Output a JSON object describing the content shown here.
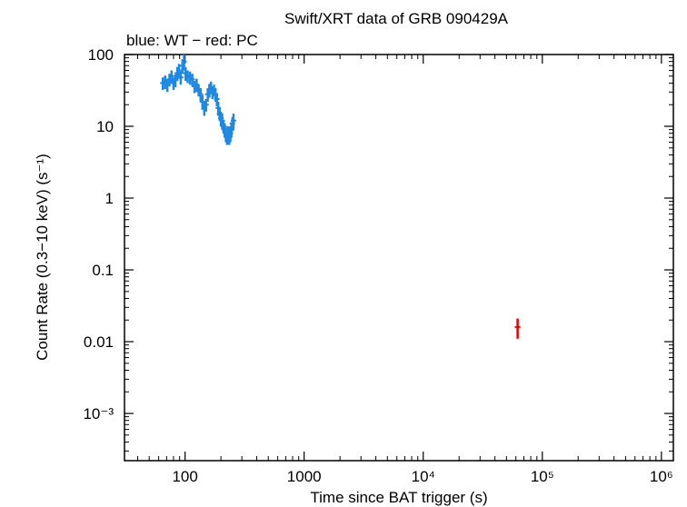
{
  "chart_data": {
    "type": "scatter",
    "title": "Swift/XRT data of GRB 090429A",
    "subtitle": "blue: WT − red: PC",
    "xlabel": "Time since BAT trigger (s)",
    "ylabel": "Count Rate (0.3−10 keV) (s⁻¹)",
    "xlog": true,
    "ylog": true,
    "xlim": [
      31,
      1260000
    ],
    "ylim": [
      0.00022,
      100
    ],
    "xticks": [
      100,
      1000,
      {
        "value": 10000,
        "label": "10⁴"
      },
      {
        "value": 100000,
        "label": "10⁵"
      },
      {
        "value": 1000000,
        "label": "10⁶"
      }
    ],
    "yticks": [
      100,
      10,
      1,
      0.1,
      0.01,
      {
        "value": 0.001,
        "label": "10⁻³"
      }
    ],
    "series": [
      {
        "name": "WT",
        "color": "#1e88e5",
        "x": [
          65,
          68,
          71,
          74,
          77,
          80,
          83,
          86,
          89,
          92,
          95,
          98,
          101,
          105,
          110,
          115,
          120,
          125,
          130,
          135,
          140,
          145,
          150,
          155,
          160,
          165,
          170,
          175,
          180,
          185,
          190,
          195,
          200,
          205,
          210,
          215,
          220,
          225,
          230,
          235,
          240,
          245,
          250,
          255
        ],
        "values": [
          40,
          42,
          38,
          45,
          50,
          40,
          44,
          55,
          60,
          48,
          70,
          80,
          55,
          50,
          48,
          45,
          36,
          38,
          32,
          28,
          22,
          18,
          20,
          28,
          32,
          35,
          30,
          32,
          28,
          24,
          18,
          15,
          13,
          12,
          10,
          9,
          8,
          7,
          8,
          7,
          8,
          9,
          11,
          12
        ],
        "errors": [
          8,
          9,
          8,
          9,
          10,
          8,
          9,
          12,
          14,
          10,
          16,
          20,
          12,
          10,
          10,
          9,
          7,
          8,
          6,
          6,
          5,
          4,
          4,
          6,
          7,
          7,
          6,
          6,
          6,
          5,
          4,
          3,
          3,
          3,
          2,
          2,
          2,
          1.5,
          2,
          1.5,
          2,
          2,
          2.5,
          3
        ]
      },
      {
        "name": "PC",
        "color": "#e00000",
        "x": [
          62000
        ],
        "values": [
          0.016
        ],
        "errors": [
          0.005
        ]
      }
    ]
  }
}
